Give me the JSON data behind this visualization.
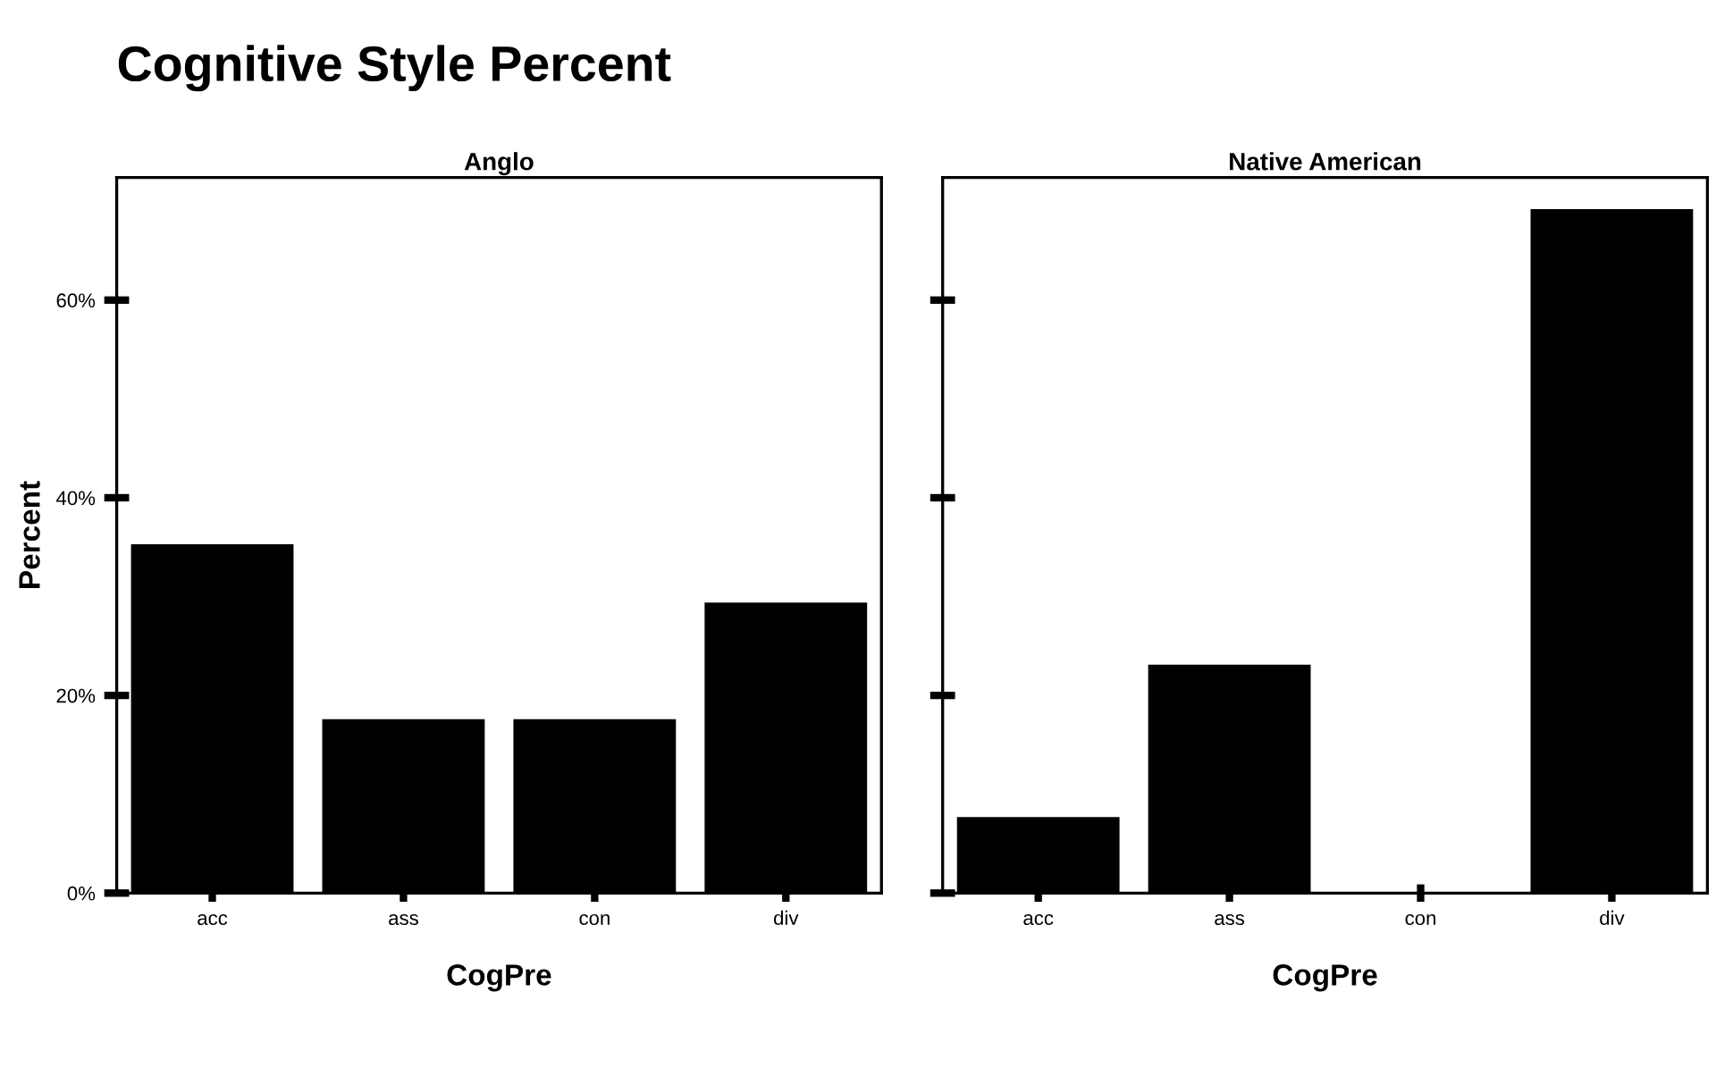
{
  "chart_data": [
    {
      "type": "bar",
      "title": "Anglo",
      "annotations": [
        "Cognitive Style Percent"
      ],
      "xlabel": "CogPre",
      "ylabel": "Percent",
      "categories": [
        "acc",
        "ass",
        "con",
        "div"
      ],
      "series": [
        {
          "color": "#000000",
          "values": [
            35.3,
            17.6,
            17.6,
            29.4
          ]
        }
      ],
      "ylim": [
        0,
        72.4
      ],
      "yticks": [
        {
          "value": 0,
          "label": "0%"
        },
        {
          "value": 20,
          "label": "20%"
        },
        {
          "value": 40,
          "label": "40%"
        },
        {
          "value": 60,
          "label": "60%"
        }
      ],
      "grid": false
    },
    {
      "type": "bar",
      "title": "Native American",
      "xlabel": "CogPre",
      "categories": [
        "acc",
        "ass",
        "con",
        "div"
      ],
      "series": [
        {
          "color": "#000000",
          "values": [
            7.7,
            23.1,
            0,
            69.2
          ]
        }
      ],
      "ylim": [
        0,
        72.4
      ],
      "yticks": [
        {
          "value": 0,
          "label": null
        },
        {
          "value": 20,
          "label": null
        },
        {
          "value": 40,
          "label": null
        },
        {
          "value": 60,
          "label": null
        }
      ],
      "tick_labels": "x",
      "grid": false
    }
  ]
}
